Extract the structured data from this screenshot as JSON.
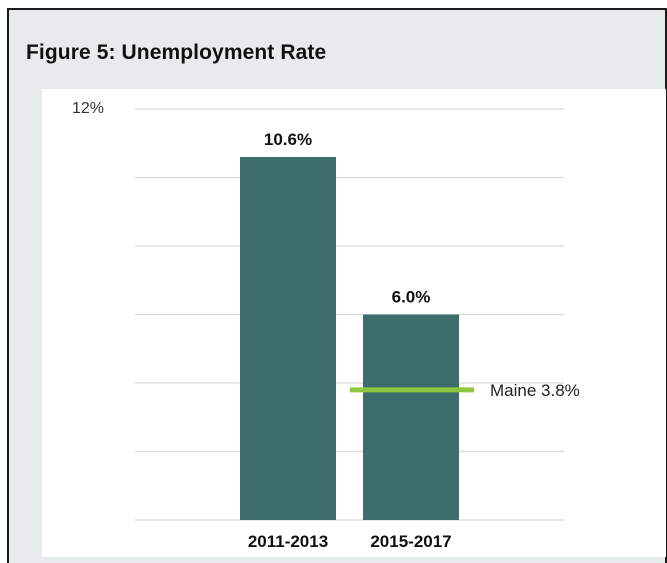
{
  "title": "Figure 5: Unemployment Rate",
  "colors": {
    "bar": "#3d6e6c",
    "reference_line": "#8dc63f",
    "gridline": "#d9d9d9",
    "frame_background": "#e8ebec"
  },
  "chart_data": {
    "type": "bar",
    "categories": [
      "2011-2013",
      "2015-2017"
    ],
    "values": [
      10.6,
      6.0
    ],
    "value_labels": [
      "10.6%",
      "6.0%"
    ],
    "ylim": [
      0,
      12
    ],
    "yticks": [
      0,
      2,
      4,
      6,
      8,
      10,
      12
    ],
    "ytick_labels_shown": [
      "12%"
    ],
    "grid": true,
    "xlabel": "",
    "ylabel": "",
    "reference_line": {
      "label": "Maine 3.8%",
      "value": 3.8,
      "category": "2015-2017"
    }
  }
}
